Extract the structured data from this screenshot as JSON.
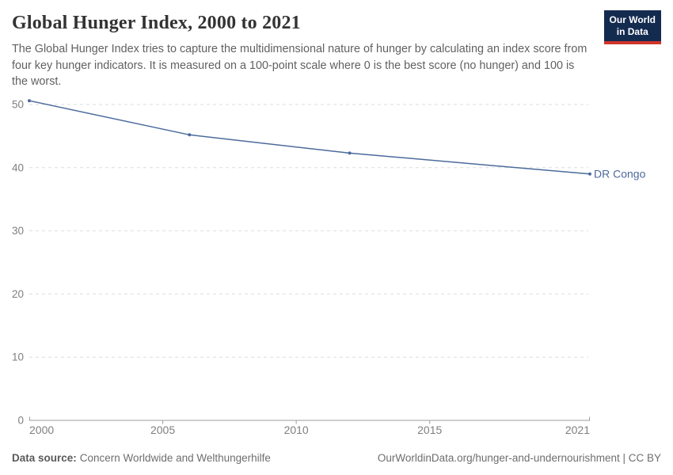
{
  "header": {
    "title": "Global Hunger Index, 2000 to 2021",
    "subtitle": "The Global Hunger Index tries to capture the multidimensional nature of hunger by calculating an index score from four key hunger indicators. It is measured on a 100-point scale where 0 is the best score (no hunger) and 100 is the worst.",
    "logo": {
      "line1": "Our World",
      "line2": "in Data",
      "bg_color": "#142b50",
      "accent_color": "#d0352b",
      "text_color": "#ffffff"
    }
  },
  "chart_data": {
    "type": "line",
    "title": "Global Hunger Index, 2000 to 2021",
    "xlabel": "",
    "ylabel": "",
    "xlim": [
      2000,
      2021
    ],
    "ylim": [
      0,
      50
    ],
    "x_ticks": [
      2000,
      2005,
      2010,
      2015,
      2021
    ],
    "y_ticks": [
      0,
      10,
      20,
      30,
      40,
      50
    ],
    "grid": "horizontal-dashed",
    "legend_position": "end-of-line-label",
    "series": [
      {
        "name": "DR Congo",
        "color": "#4c6a9c",
        "points": [
          {
            "x": 2000,
            "y": 50.6
          },
          {
            "x": 2006,
            "y": 45.2
          },
          {
            "x": 2012,
            "y": 42.3
          },
          {
            "x": 2021,
            "y": 39.0
          }
        ]
      }
    ]
  },
  "footer": {
    "datasource_label": "Data source:",
    "datasource_value": "Concern Worldwide and Welthungerhilfe",
    "citation": "OurWorldinData.org/hunger-and-undernourishment | CC BY"
  },
  "colors": {
    "title": "#333333",
    "subtitle": "#616161",
    "gridline": "#dedede",
    "axis": "#9e9e9e",
    "tick_label": "#7f7f7f",
    "series_blue": "#4c6a9c"
  }
}
